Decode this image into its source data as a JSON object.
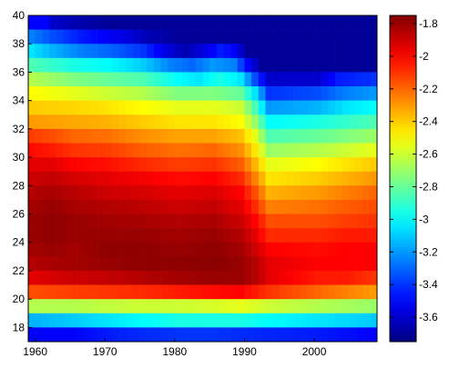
{
  "chart_data": {
    "type": "heatmap",
    "title": "",
    "xlabel": "",
    "ylabel": "",
    "colormap": "jet",
    "x_start": 1959,
    "x_end": 2008,
    "x_ticks": [
      1960,
      1970,
      1980,
      1990,
      2000
    ],
    "xlim": [
      1959,
      2009
    ],
    "y_start": 17,
    "y_end": 39,
    "y_ticks": [
      18,
      20,
      22,
      24,
      26,
      28,
      30,
      32,
      34,
      36,
      38,
      40
    ],
    "ylim": [
      17,
      40
    ],
    "color_range": [
      -3.75,
      -1.75
    ],
    "colorbar_ticks": [
      -1.8,
      -2,
      -2.2,
      -2.4,
      -2.6,
      -2.8,
      -3,
      -3.2,
      -3.4,
      -3.6
    ],
    "colorbar_tick_labels": [
      "-1.8",
      "-2",
      "-2.2",
      "-2.4",
      "-2.6",
      "-2.8",
      "-3",
      "-3.2",
      "-3.4",
      "-3.6"
    ],
    "rows": [
      {
        "y": 39,
        "anchors": [
          [
            1959,
            -3.5
          ],
          [
            1961,
            -3.5
          ],
          [
            1962,
            -3.6
          ],
          [
            1965,
            -3.65
          ],
          [
            1970,
            -3.7
          ],
          [
            2008,
            -3.7
          ]
        ]
      },
      {
        "y": 38,
        "anchors": [
          [
            1959,
            -3.25
          ],
          [
            1962,
            -3.35
          ],
          [
            1966,
            -3.45
          ],
          [
            1972,
            -3.55
          ],
          [
            1976,
            -3.65
          ],
          [
            1980,
            -3.7
          ],
          [
            2008,
            -3.7
          ]
        ]
      },
      {
        "y": 37,
        "anchors": [
          [
            1959,
            -3.05
          ],
          [
            1962,
            -3.15
          ],
          [
            1966,
            -3.25
          ],
          [
            1970,
            -3.3
          ],
          [
            1975,
            -3.4
          ],
          [
            1978,
            -3.55
          ],
          [
            1981,
            -3.65
          ],
          [
            1984,
            -3.55
          ],
          [
            1986,
            -3.45
          ],
          [
            1988,
            -3.5
          ],
          [
            1990,
            -3.7
          ],
          [
            2008,
            -3.7
          ]
        ]
      },
      {
        "y": 36,
        "anchors": [
          [
            1959,
            -2.85
          ],
          [
            1965,
            -2.95
          ],
          [
            1970,
            -3.0
          ],
          [
            1975,
            -3.1
          ],
          [
            1979,
            -3.25
          ],
          [
            1982,
            -3.3
          ],
          [
            1985,
            -3.2
          ],
          [
            1988,
            -3.25
          ],
          [
            1990,
            -3.5
          ],
          [
            1992,
            -3.7
          ],
          [
            2008,
            -3.7
          ]
        ]
      },
      {
        "y": 35,
        "anchors": [
          [
            1959,
            -2.65
          ],
          [
            1965,
            -2.75
          ],
          [
            1970,
            -2.8
          ],
          [
            1975,
            -2.85
          ],
          [
            1980,
            -3.0
          ],
          [
            1983,
            -3.05
          ],
          [
            1986,
            -2.95
          ],
          [
            1989,
            -3.05
          ],
          [
            1991,
            -3.35
          ],
          [
            1993,
            -3.6
          ],
          [
            2000,
            -3.6
          ],
          [
            2003,
            -3.45
          ],
          [
            2008,
            -3.4
          ]
        ]
      },
      {
        "y": 34,
        "anchors": [
          [
            1959,
            -2.5
          ],
          [
            1965,
            -2.55
          ],
          [
            1970,
            -2.6
          ],
          [
            1975,
            -2.65
          ],
          [
            1980,
            -2.75
          ],
          [
            1985,
            -2.75
          ],
          [
            1989,
            -2.8
          ],
          [
            1991,
            -3.05
          ],
          [
            1993,
            -3.4
          ],
          [
            2000,
            -3.35
          ],
          [
            2004,
            -3.25
          ],
          [
            2008,
            -3.2
          ]
        ]
      },
      {
        "y": 33,
        "anchors": [
          [
            1959,
            -2.4
          ],
          [
            1965,
            -2.42
          ],
          [
            1970,
            -2.45
          ],
          [
            1975,
            -2.5
          ],
          [
            1980,
            -2.55
          ],
          [
            1985,
            -2.55
          ],
          [
            1989,
            -2.6
          ],
          [
            1991,
            -2.85
          ],
          [
            1993,
            -3.2
          ],
          [
            2000,
            -3.15
          ],
          [
            2004,
            -3.05
          ],
          [
            2008,
            -3.0
          ]
        ]
      },
      {
        "y": 32,
        "anchors": [
          [
            1959,
            -2.3
          ],
          [
            1965,
            -2.33
          ],
          [
            1970,
            -2.35
          ],
          [
            1975,
            -2.4
          ],
          [
            1980,
            -2.45
          ],
          [
            1985,
            -2.45
          ],
          [
            1989,
            -2.5
          ],
          [
            1991,
            -2.7
          ],
          [
            1993,
            -3.0
          ],
          [
            2000,
            -2.95
          ],
          [
            2004,
            -2.9
          ],
          [
            2008,
            -2.85
          ]
        ]
      },
      {
        "y": 31,
        "anchors": [
          [
            1959,
            -2.12
          ],
          [
            1962,
            -2.15
          ],
          [
            1965,
            -2.2
          ],
          [
            1970,
            -2.22
          ],
          [
            1975,
            -2.28
          ],
          [
            1980,
            -2.32
          ],
          [
            1985,
            -2.32
          ],
          [
            1989,
            -2.38
          ],
          [
            1991,
            -2.55
          ],
          [
            1993,
            -2.85
          ],
          [
            2000,
            -2.8
          ],
          [
            2004,
            -2.75
          ],
          [
            2008,
            -2.7
          ]
        ]
      },
      {
        "y": 30,
        "anchors": [
          [
            1959,
            -2.02
          ],
          [
            1962,
            -2.05
          ],
          [
            1965,
            -2.1
          ],
          [
            1970,
            -2.12
          ],
          [
            1975,
            -2.18
          ],
          [
            1980,
            -2.22
          ],
          [
            1985,
            -2.2
          ],
          [
            1989,
            -2.28
          ],
          [
            1991,
            -2.45
          ],
          [
            1993,
            -2.7
          ],
          [
            2000,
            -2.65
          ],
          [
            2004,
            -2.6
          ],
          [
            2008,
            -2.55
          ]
        ]
      },
      {
        "y": 29,
        "anchors": [
          [
            1959,
            -1.95
          ],
          [
            1962,
            -1.95
          ],
          [
            1965,
            -2.0
          ],
          [
            1970,
            -2.03
          ],
          [
            1975,
            -2.08
          ],
          [
            1980,
            -2.12
          ],
          [
            1985,
            -2.1
          ],
          [
            1989,
            -2.18
          ],
          [
            1991,
            -2.35
          ],
          [
            1993,
            -2.55
          ],
          [
            2000,
            -2.5
          ],
          [
            2004,
            -2.45
          ],
          [
            2008,
            -2.4
          ]
        ]
      },
      {
        "y": 28,
        "anchors": [
          [
            1959,
            -1.9
          ],
          [
            1962,
            -1.88
          ],
          [
            1965,
            -1.92
          ],
          [
            1970,
            -1.95
          ],
          [
            1975,
            -1.98
          ],
          [
            1980,
            -2.02
          ],
          [
            1985,
            -2.0
          ],
          [
            1989,
            -2.08
          ],
          [
            1991,
            -2.25
          ],
          [
            1993,
            -2.45
          ],
          [
            2000,
            -2.4
          ],
          [
            2004,
            -2.35
          ],
          [
            2008,
            -2.3
          ]
        ]
      },
      {
        "y": 27,
        "anchors": [
          [
            1959,
            -1.85
          ],
          [
            1962,
            -1.83
          ],
          [
            1965,
            -1.86
          ],
          [
            1970,
            -1.9
          ],
          [
            1975,
            -1.92
          ],
          [
            1980,
            -1.95
          ],
          [
            1985,
            -1.93
          ],
          [
            1989,
            -2.0
          ],
          [
            1991,
            -2.15
          ],
          [
            1993,
            -2.35
          ],
          [
            2000,
            -2.3
          ],
          [
            2004,
            -2.25
          ],
          [
            2008,
            -2.2
          ]
        ]
      },
      {
        "y": 26,
        "anchors": [
          [
            1959,
            -1.82
          ],
          [
            1962,
            -1.8
          ],
          [
            1965,
            -1.83
          ],
          [
            1970,
            -1.85
          ],
          [
            1975,
            -1.87
          ],
          [
            1980,
            -1.9
          ],
          [
            1985,
            -1.88
          ],
          [
            1989,
            -1.95
          ],
          [
            1991,
            -2.08
          ],
          [
            1993,
            -2.25
          ],
          [
            2000,
            -2.22
          ],
          [
            2004,
            -2.18
          ],
          [
            2008,
            -2.15
          ]
        ]
      },
      {
        "y": 25,
        "anchors": [
          [
            1959,
            -1.8
          ],
          [
            1962,
            -1.78
          ],
          [
            1965,
            -1.8
          ],
          [
            1970,
            -1.82
          ],
          [
            1975,
            -1.83
          ],
          [
            1980,
            -1.85
          ],
          [
            1985,
            -1.83
          ],
          [
            1989,
            -1.9
          ],
          [
            1991,
            -2.0
          ],
          [
            1993,
            -2.15
          ],
          [
            2000,
            -2.15
          ],
          [
            2004,
            -2.12
          ],
          [
            2008,
            -2.1
          ]
        ]
      },
      {
        "y": 24,
        "anchors": [
          [
            1959,
            -1.8
          ],
          [
            1962,
            -1.78
          ],
          [
            1965,
            -1.8
          ],
          [
            1970,
            -1.8
          ],
          [
            1975,
            -1.8
          ],
          [
            1980,
            -1.82
          ],
          [
            1985,
            -1.8
          ],
          [
            1989,
            -1.85
          ],
          [
            1991,
            -1.95
          ],
          [
            1993,
            -2.08
          ],
          [
            2000,
            -2.08
          ],
          [
            2004,
            -2.05
          ],
          [
            2008,
            -2.05
          ]
        ]
      },
      {
        "y": 23,
        "anchors": [
          [
            1959,
            -1.82
          ],
          [
            1962,
            -1.8
          ],
          [
            1965,
            -1.82
          ],
          [
            1970,
            -1.78
          ],
          [
            1975,
            -1.78
          ],
          [
            1980,
            -1.8
          ],
          [
            1985,
            -1.78
          ],
          [
            1989,
            -1.82
          ],
          [
            1991,
            -1.9
          ],
          [
            1993,
            -2.0
          ],
          [
            2000,
            -2.02
          ],
          [
            2004,
            -2.0
          ],
          [
            2008,
            -2.0
          ]
        ]
      },
      {
        "y": 22,
        "anchors": [
          [
            1959,
            -1.85
          ],
          [
            1962,
            -1.83
          ],
          [
            1965,
            -1.82
          ],
          [
            1970,
            -1.8
          ],
          [
            1975,
            -1.78
          ],
          [
            1980,
            -1.78
          ],
          [
            1985,
            -1.77
          ],
          [
            1989,
            -1.8
          ],
          [
            1991,
            -1.85
          ],
          [
            1993,
            -1.95
          ],
          [
            2000,
            -2.0
          ],
          [
            2004,
            -2.0
          ],
          [
            2008,
            -2.0
          ]
        ]
      },
      {
        "y": 21,
        "anchors": [
          [
            1959,
            -1.95
          ],
          [
            1962,
            -1.92
          ],
          [
            1965,
            -1.9
          ],
          [
            1970,
            -1.88
          ],
          [
            1975,
            -1.85
          ],
          [
            1980,
            -1.82
          ],
          [
            1985,
            -1.8
          ],
          [
            1989,
            -1.8
          ],
          [
            1991,
            -1.85
          ],
          [
            1993,
            -1.95
          ],
          [
            2000,
            -2.05
          ],
          [
            2004,
            -2.05
          ],
          [
            2008,
            -2.1
          ]
        ]
      },
      {
        "y": 20,
        "anchors": [
          [
            1959,
            -2.15
          ],
          [
            1965,
            -2.12
          ],
          [
            1970,
            -2.1
          ],
          [
            1975,
            -2.08
          ],
          [
            1980,
            -2.05
          ],
          [
            1985,
            -2.02
          ],
          [
            1989,
            -2.0
          ],
          [
            1991,
            -2.05
          ],
          [
            1993,
            -2.1
          ],
          [
            2000,
            -2.2
          ],
          [
            2004,
            -2.25
          ],
          [
            2008,
            -2.3
          ]
        ]
      },
      {
        "y": 19,
        "anchors": [
          [
            1959,
            -2.65
          ],
          [
            1965,
            -2.65
          ],
          [
            1970,
            -2.62
          ],
          [
            1975,
            -2.6
          ],
          [
            1980,
            -2.6
          ],
          [
            1985,
            -2.58
          ],
          [
            1989,
            -2.55
          ],
          [
            1993,
            -2.6
          ],
          [
            2000,
            -2.65
          ],
          [
            2008,
            -2.7
          ]
        ]
      },
      {
        "y": 18,
        "anchors": [
          [
            1959,
            -3.15
          ],
          [
            1965,
            -3.1
          ],
          [
            1970,
            -3.05
          ],
          [
            1975,
            -3.0
          ],
          [
            1980,
            -2.95
          ],
          [
            1985,
            -2.95
          ],
          [
            1989,
            -2.95
          ],
          [
            1993,
            -3.0
          ],
          [
            2000,
            -3.05
          ],
          [
            2008,
            -3.1
          ]
        ]
      },
      {
        "y": 17,
        "anchors": [
          [
            1959,
            -3.5
          ],
          [
            1965,
            -3.5
          ],
          [
            1970,
            -3.45
          ],
          [
            1975,
            -3.42
          ],
          [
            1980,
            -3.4
          ],
          [
            1985,
            -3.4
          ],
          [
            1990,
            -3.42
          ],
          [
            2000,
            -3.45
          ],
          [
            2008,
            -3.5
          ]
        ]
      }
    ]
  }
}
